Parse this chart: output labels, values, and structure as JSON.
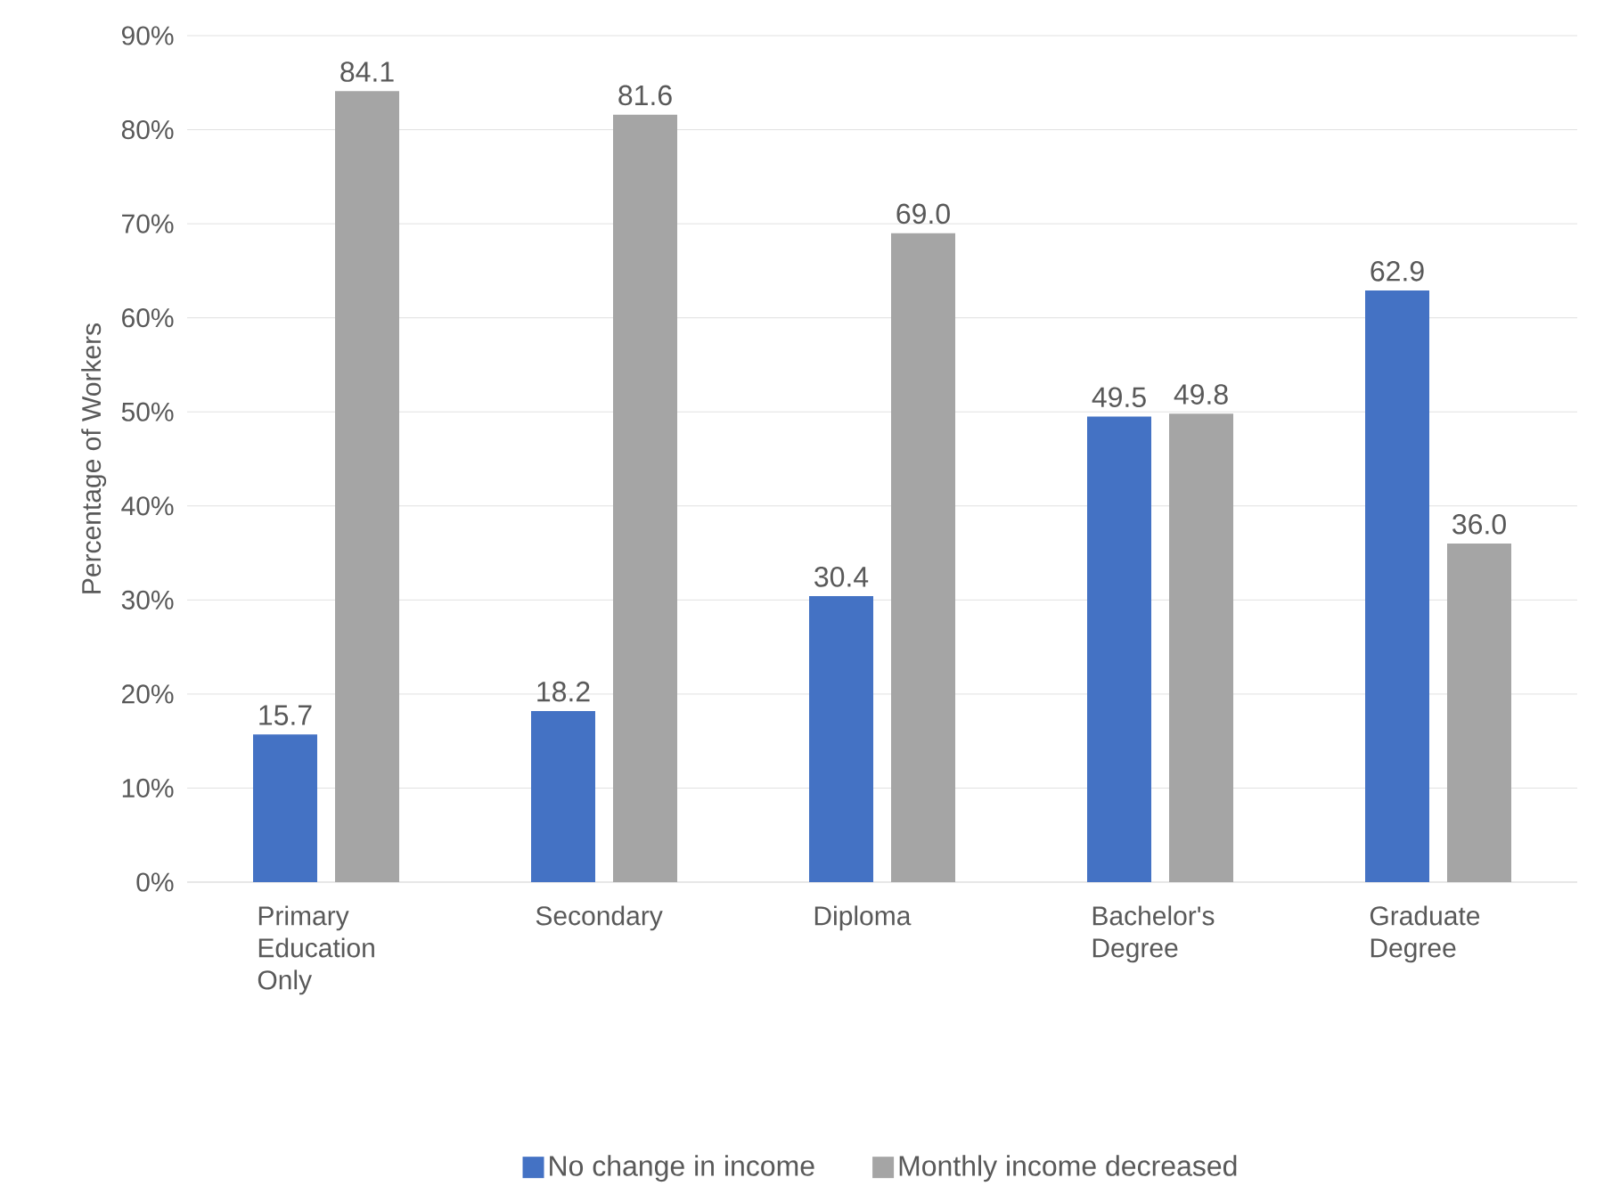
{
  "chart_data": {
    "type": "bar",
    "ylabel": "Percentage of Workers",
    "categories": [
      "Primary Education Only",
      "Secondary",
      "Diploma",
      "Bachelor's Degree",
      "Graduate Degree"
    ],
    "series": [
      {
        "name": "No change in income",
        "color": "#4472c4",
        "values": [
          15.7,
          18.2,
          30.4,
          49.5,
          62.9
        ],
        "value_labels": [
          "15.7",
          "18.2",
          "30.4",
          "49.5",
          "62.9"
        ]
      },
      {
        "name": "Monthly income decreased",
        "color": "#a5a5a5",
        "values": [
          84.1,
          81.6,
          69.0,
          49.8,
          36.0
        ],
        "value_labels": [
          "84.1",
          "81.6",
          "69.0",
          "49.8",
          "36.0"
        ]
      }
    ],
    "ylim": [
      0,
      90
    ],
    "yticks": [
      {
        "value": 0,
        "label": "0%"
      },
      {
        "value": 10,
        "label": "10%"
      },
      {
        "value": 20,
        "label": "20%"
      },
      {
        "value": 30,
        "label": "30%"
      },
      {
        "value": 40,
        "label": "40%"
      },
      {
        "value": 50,
        "label": "50%"
      },
      {
        "value": 60,
        "label": "60%"
      },
      {
        "value": 70,
        "label": "70%"
      },
      {
        "value": 80,
        "label": "80%"
      },
      {
        "value": 90,
        "label": "90%"
      }
    ],
    "grid": "y",
    "legend": "bottom"
  }
}
